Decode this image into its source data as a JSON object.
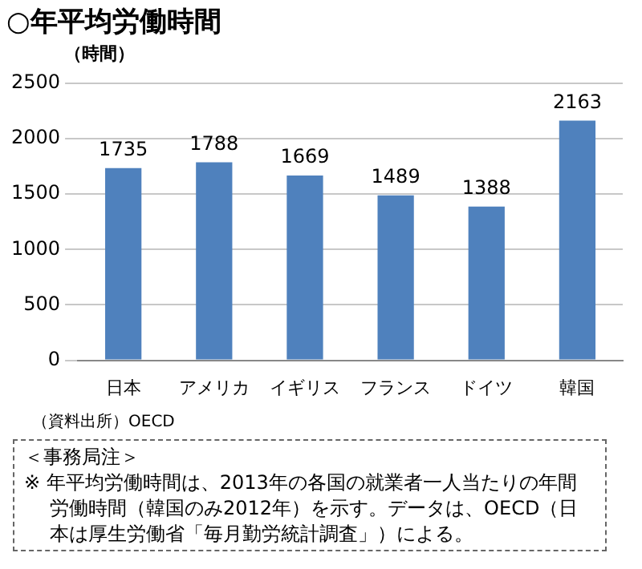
{
  "chart_data": {
    "type": "bar",
    "title": "○年平均労働時間",
    "ylabel": "（時間）",
    "categories": [
      "日本",
      "アメリカ",
      "イギリス",
      "フランス",
      "ドイツ",
      "韓国"
    ],
    "values": [
      1735,
      1788,
      1669,
      1489,
      1388,
      2163
    ],
    "color": "#4f81bd",
    "ylim": [
      0,
      2500
    ],
    "yticks": [
      0,
      500,
      1000,
      1500,
      2000,
      2500
    ],
    "grid": "y",
    "data_labels": true,
    "annotations": [
      "（資料出所）OECD",
      "＜事務局注＞",
      "※ 年平均労働時間は、2013年の各国の就業者一人当たりの年間労働時間（韓国のみ2012年）を示す。データは、OECD（日本は厚生労働省「毎月勤労統計調査」）による。"
    ]
  }
}
